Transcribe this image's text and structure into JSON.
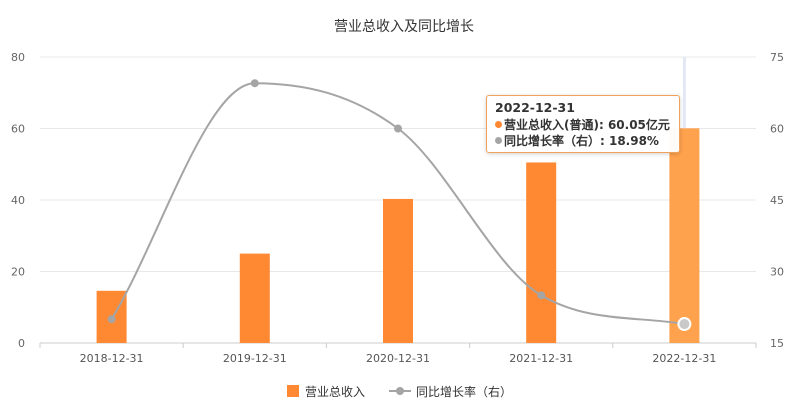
{
  "chart_data": {
    "type": "bar",
    "title": "营业总收入及同比增长",
    "categories": [
      "2018-12-31",
      "2019-12-31",
      "2020-12-31",
      "2021-12-31",
      "2022-12-31"
    ],
    "series": [
      {
        "name": "营业总收入",
        "type": "bar",
        "axis": "left",
        "color": "#ff8833",
        "values": [
          14.6,
          25.0,
          40.3,
          50.5,
          60.05
        ]
      },
      {
        "name": "同比增长率（右）",
        "type": "line",
        "axis": "right",
        "color": "#a5a5a5",
        "values": [
          20.0,
          69.5,
          60.0,
          25.0,
          18.98
        ]
      }
    ],
    "y_left": {
      "min": 0,
      "max": 80,
      "ticks": [
        "0",
        "20",
        "40",
        "60",
        "80"
      ]
    },
    "y_right": {
      "min": 15,
      "max": 75,
      "ticks": [
        "15",
        "30",
        "45",
        "60",
        "75"
      ]
    },
    "legend": {
      "position": "bottom"
    },
    "tooltip": {
      "date": "2022-12-31",
      "bar_text": "营业总收入(普通): 60.05亿元",
      "line_text": "同比增长率（右）: 18.98%"
    },
    "grid": true,
    "highlight_index": 4
  }
}
